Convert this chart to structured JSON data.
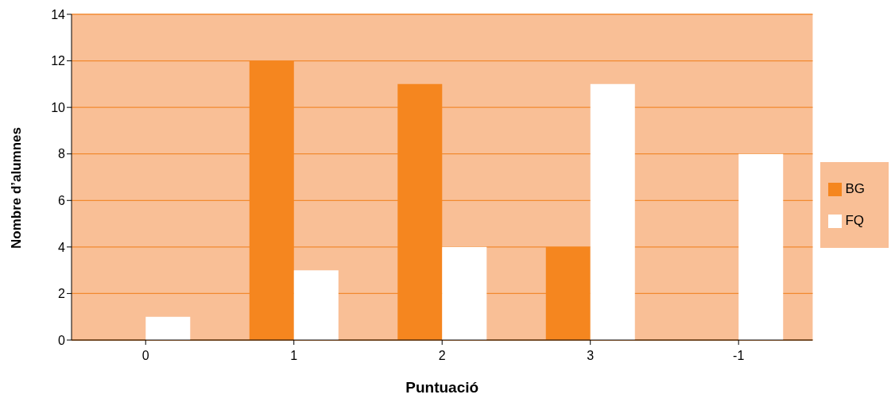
{
  "chart_data": {
    "type": "bar",
    "xlabel": "Puntuació",
    "ylabel": "Nombre d’alumnes",
    "categories": [
      "0",
      "1",
      "2",
      "3",
      "-1"
    ],
    "series": [
      {
        "name": "BG",
        "color": "#f5861f",
        "values": [
          0,
          12,
          11,
          4,
          0
        ]
      },
      {
        "name": "FQ",
        "color": "#ffffff",
        "values": [
          1,
          3,
          4,
          11,
          8
        ]
      }
    ],
    "ylim": [
      0,
      14
    ],
    "yticks": [
      0,
      2,
      4,
      6,
      8,
      10,
      12,
      14
    ],
    "grid": "y",
    "legend": "right"
  }
}
